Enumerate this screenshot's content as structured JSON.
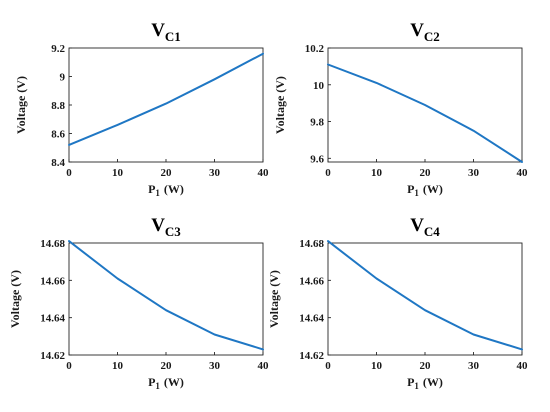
{
  "colors": {
    "line": "#1f77c4",
    "grid": "#dedede",
    "axis": "#262626"
  },
  "chart_data": [
    {
      "type": "line",
      "title": "V",
      "title_sub": "C1",
      "xlabel": "P",
      "xlabel_sub": "1",
      "xlabel_unit": "(W)",
      "ylabel": "Voltage (V)",
      "xlim": [
        0,
        40
      ],
      "ylim": [
        8.4,
        9.2
      ],
      "xticks": [
        0,
        10,
        20,
        30,
        40
      ],
      "yticks": [
        8.4,
        8.6,
        8.8,
        9,
        9.2
      ],
      "ytick_labels": [
        "8.4",
        "8.6",
        "8.8",
        "9",
        "9.2"
      ],
      "grid": true,
      "x": [
        0,
        10,
        20,
        30,
        40
      ],
      "y": [
        8.52,
        8.66,
        8.81,
        8.98,
        9.16
      ]
    },
    {
      "type": "line",
      "title": "V",
      "title_sub": "C2",
      "xlabel": "P",
      "xlabel_sub": "1",
      "xlabel_unit": "(W)",
      "ylabel": "Voltage (V)",
      "xlim": [
        0,
        40
      ],
      "ylim": [
        9.58,
        10.2
      ],
      "xticks": [
        0,
        10,
        20,
        30,
        40
      ],
      "yticks": [
        9.6,
        9.8,
        10,
        10.2
      ],
      "ytick_labels": [
        "9.6",
        "9.8",
        "10",
        "10.2"
      ],
      "grid": true,
      "x": [
        0,
        10,
        20,
        30,
        40
      ],
      "y": [
        10.11,
        10.01,
        9.89,
        9.75,
        9.58
      ]
    },
    {
      "type": "line",
      "title": "V",
      "title_sub": "C3",
      "xlabel": "P",
      "xlabel_sub": "1",
      "xlabel_unit": "(W)",
      "ylabel": "Voltage (V)",
      "xlim": [
        0,
        40
      ],
      "ylim": [
        14.62,
        14.68
      ],
      "xticks": [
        0,
        10,
        20,
        30,
        40
      ],
      "yticks": [
        14.62,
        14.64,
        14.66,
        14.68
      ],
      "ytick_labels": [
        "14.62",
        "14.64",
        "14.66",
        "14.68"
      ],
      "grid": true,
      "x": [
        0,
        10,
        20,
        30,
        40
      ],
      "y": [
        14.681,
        14.661,
        14.644,
        14.631,
        14.623
      ]
    },
    {
      "type": "line",
      "title": "V",
      "title_sub": "C4",
      "xlabel": "P",
      "xlabel_sub": "1",
      "xlabel_unit": "(W)",
      "ylabel": "Voltage (V)",
      "xlim": [
        0,
        40
      ],
      "ylim": [
        14.62,
        14.68
      ],
      "xticks": [
        0,
        10,
        20,
        30,
        40
      ],
      "yticks": [
        14.62,
        14.64,
        14.66,
        14.68
      ],
      "ytick_labels": [
        "14.62",
        "14.64",
        "14.66",
        "14.68"
      ],
      "grid": true,
      "x": [
        0,
        10,
        20,
        30,
        40
      ],
      "y": [
        14.681,
        14.661,
        14.644,
        14.631,
        14.623
      ]
    }
  ]
}
